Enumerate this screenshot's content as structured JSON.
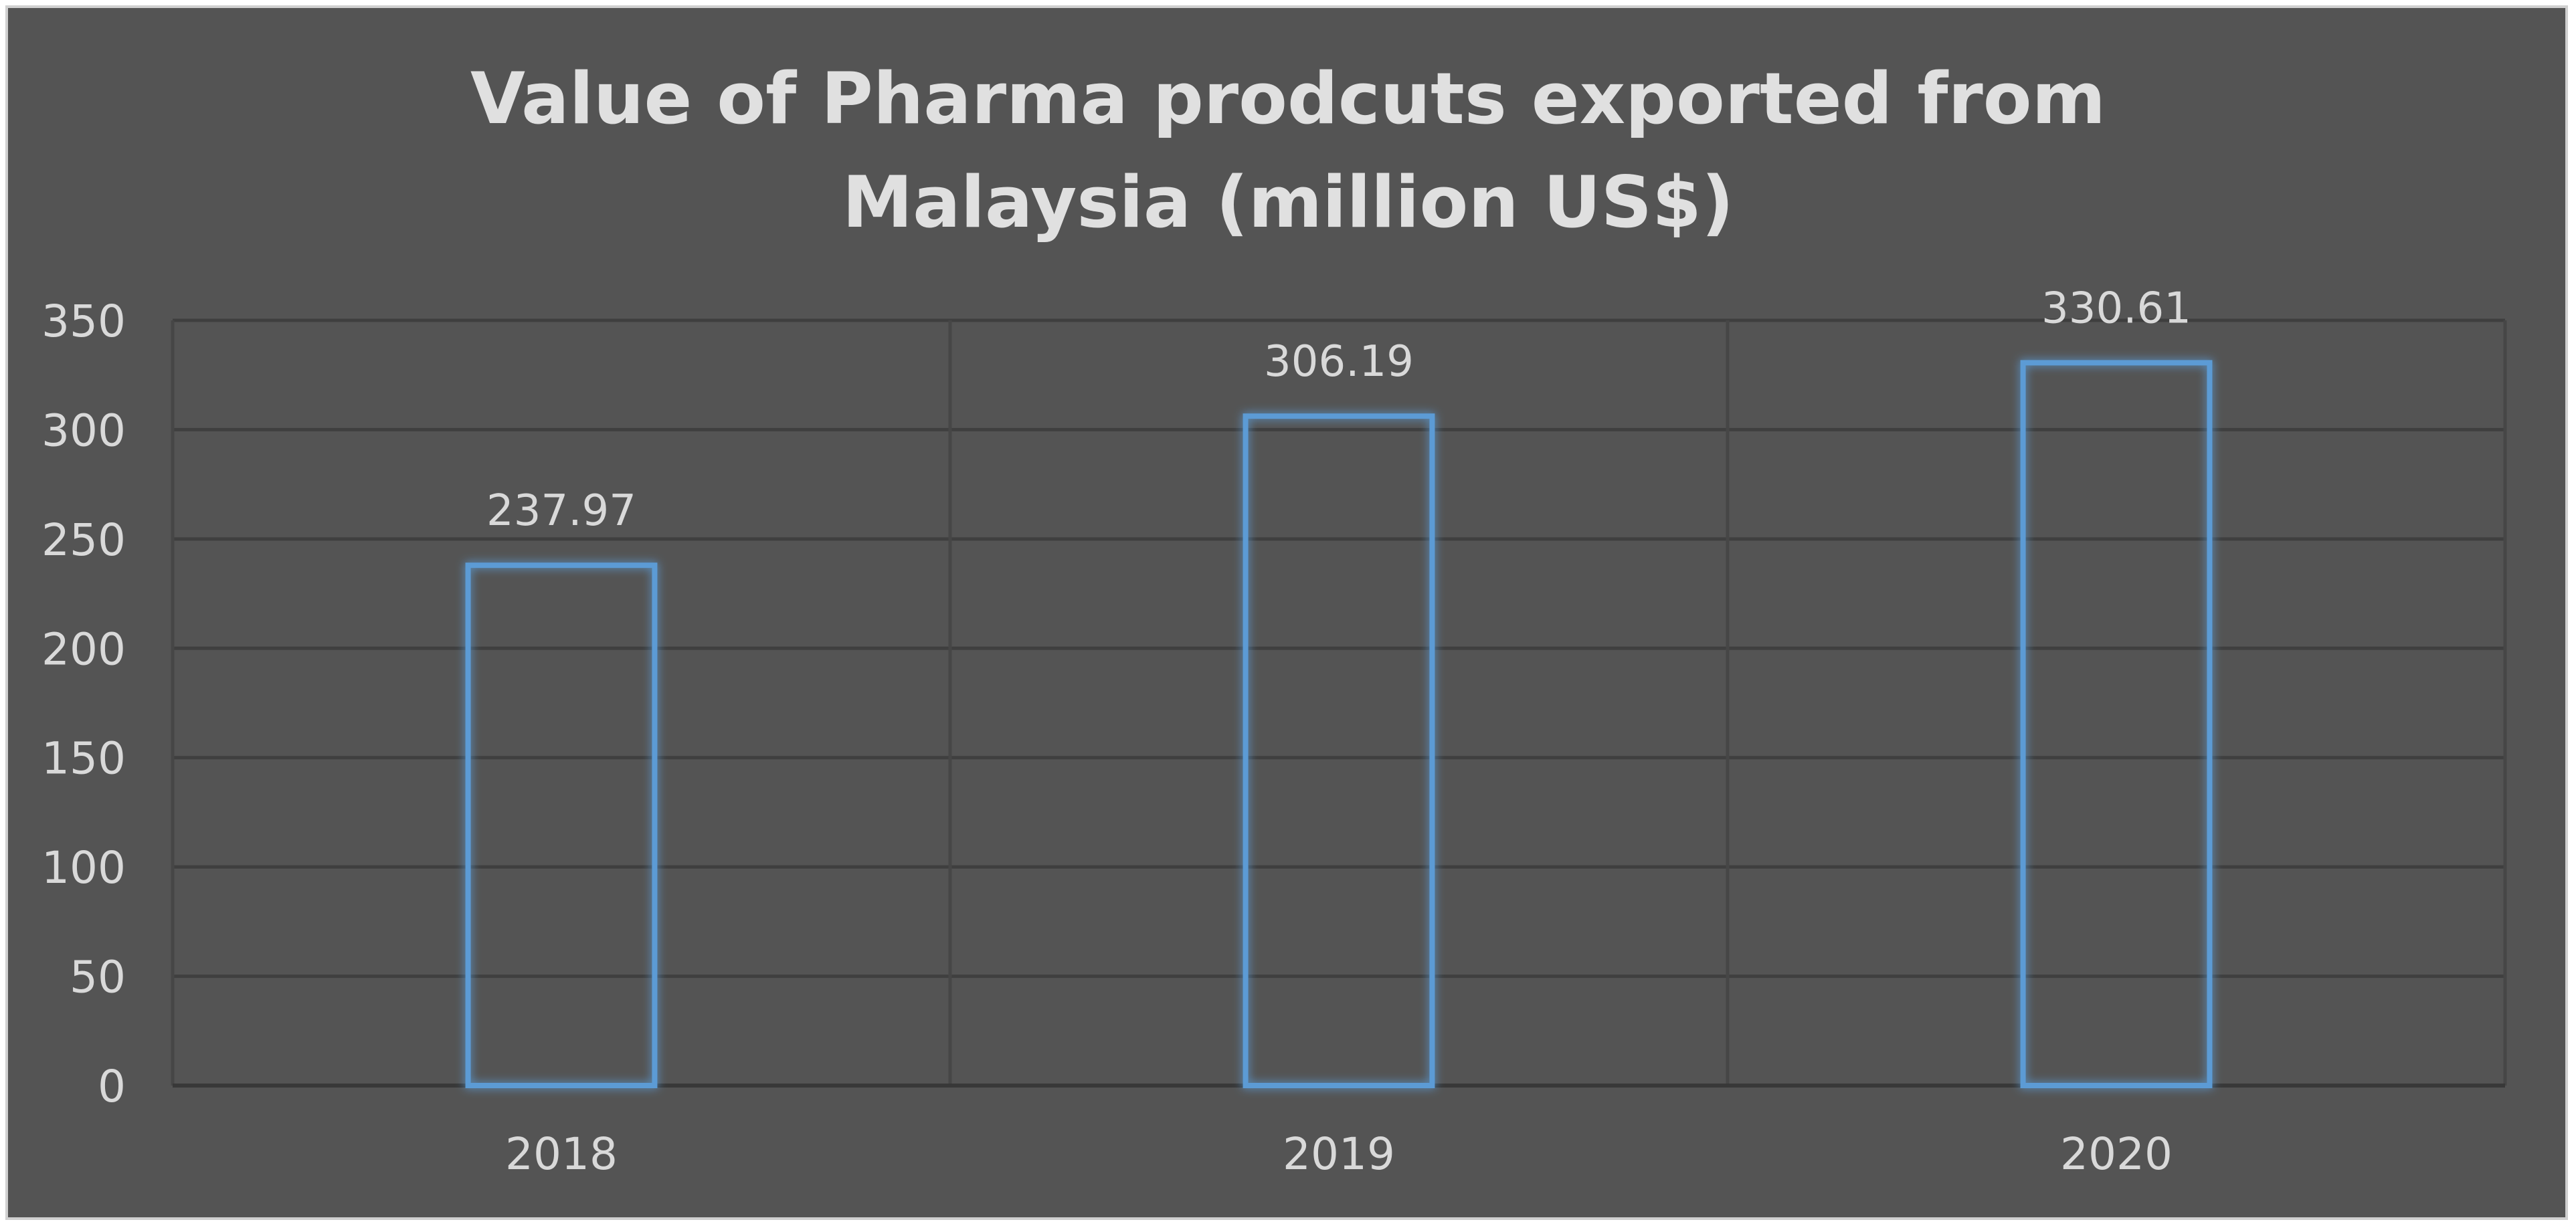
{
  "chart_data": {
    "type": "bar",
    "title": "Value of Pharma prodcuts exported from Malaysia (million US$)",
    "categories": [
      "2018",
      "2019",
      "2020"
    ],
    "values": [
      237.97,
      306.19,
      330.61
    ],
    "color": "#5b9bd5",
    "ylim": [
      0,
      350
    ],
    "yticks": [
      0,
      50,
      100,
      150,
      200,
      250,
      300,
      350
    ],
    "grid": true
  }
}
